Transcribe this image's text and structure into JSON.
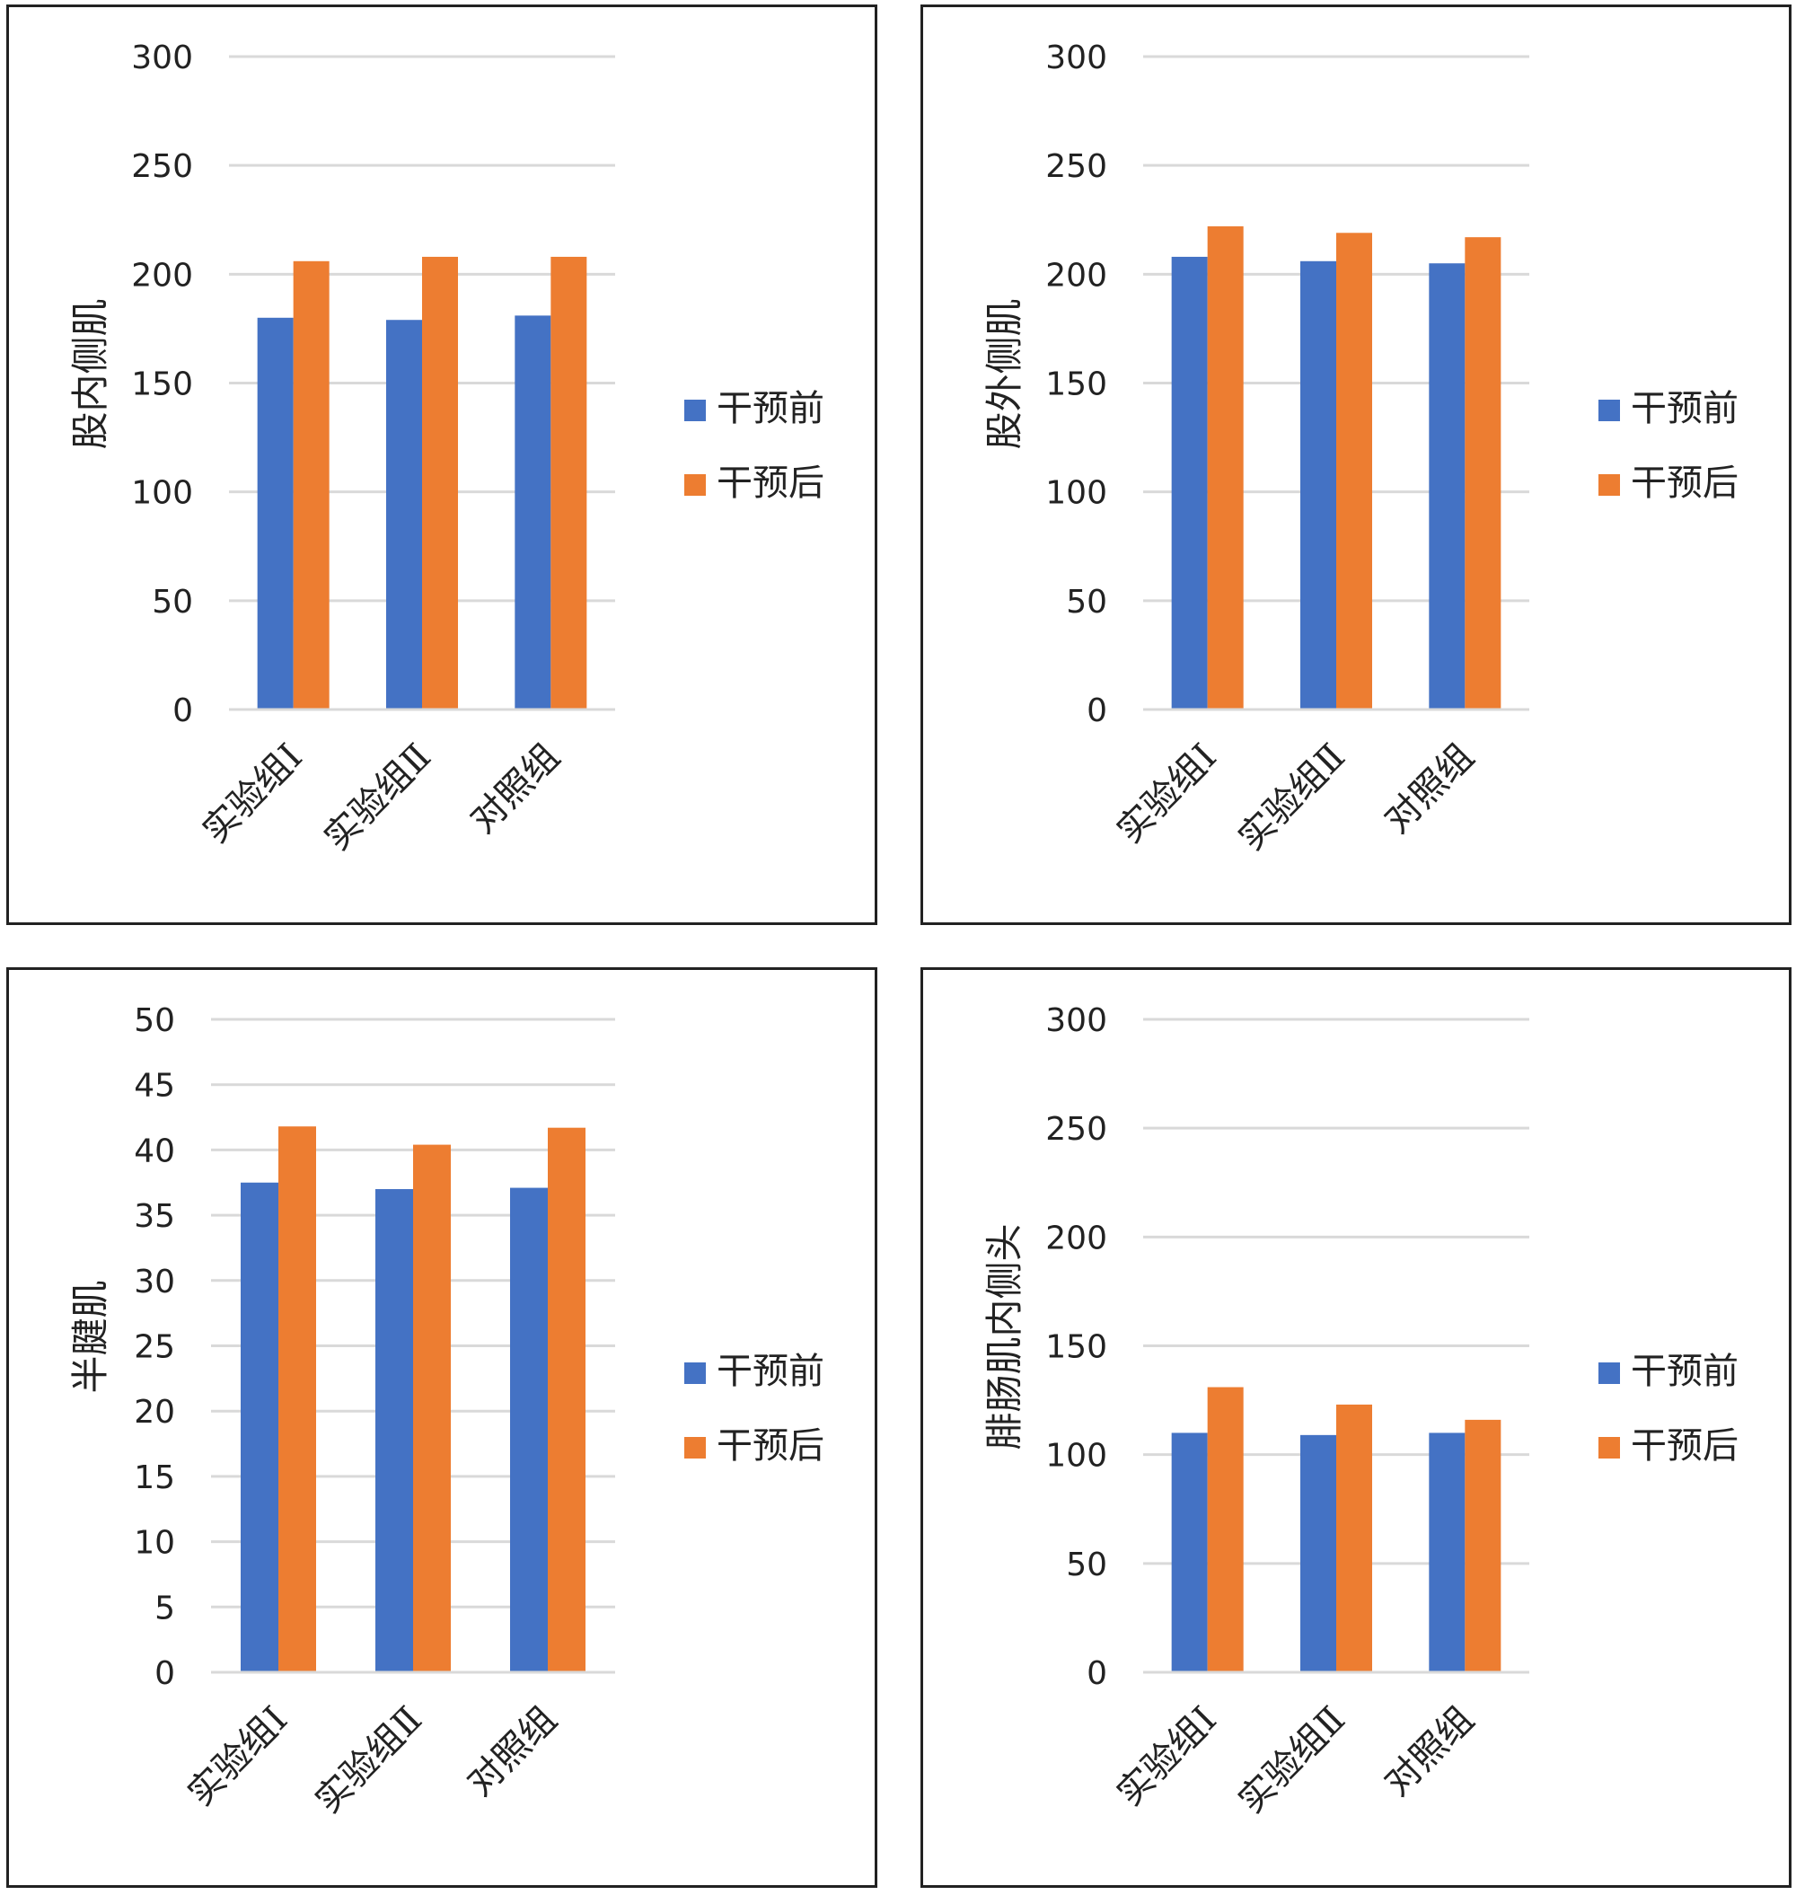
{
  "colors": {
    "before": "#4472C4",
    "after": "#ED7D31",
    "grid": "#d9d9d9",
    "axis": "#d9d9d9"
  },
  "legend": {
    "before": "干预前",
    "after": "干预后"
  },
  "chart_data": [
    {
      "type": "bar",
      "ylabel": "股内侧肌",
      "categories": [
        "实验组Ⅰ",
        "实验组Ⅱ",
        "对照组"
      ],
      "ylim": [
        0,
        300
      ],
      "yticks": [
        0,
        50,
        100,
        150,
        200,
        250,
        300
      ],
      "series": [
        {
          "name": "干预前",
          "values": [
            180,
            179,
            181
          ]
        },
        {
          "name": "干预后",
          "values": [
            206,
            208,
            208
          ]
        }
      ]
    },
    {
      "type": "bar",
      "ylabel": "股外侧肌",
      "categories": [
        "实验组Ⅰ",
        "实验组Ⅱ",
        "对照组"
      ],
      "ylim": [
        0,
        300
      ],
      "yticks": [
        0,
        50,
        100,
        150,
        200,
        250,
        300
      ],
      "series": [
        {
          "name": "干预前",
          "values": [
            208,
            206,
            205
          ]
        },
        {
          "name": "干预后",
          "values": [
            222,
            219,
            217
          ]
        }
      ]
    },
    {
      "type": "bar",
      "ylabel": "半腱肌",
      "categories": [
        "实验组Ⅰ",
        "实验组Ⅱ",
        "对照组"
      ],
      "ylim": [
        0,
        50
      ],
      "yticks": [
        0,
        5,
        10,
        15,
        20,
        25,
        30,
        35,
        40,
        45,
        50
      ],
      "series": [
        {
          "name": "干预前",
          "values": [
            37.5,
            37,
            37.1
          ]
        },
        {
          "name": "干预后",
          "values": [
            41.8,
            40.4,
            41.7
          ]
        }
      ]
    },
    {
      "type": "bar",
      "ylabel": "腓肠肌内侧头",
      "categories": [
        "实验组Ⅰ",
        "实验组Ⅱ",
        "对照组"
      ],
      "ylim": [
        0,
        300
      ],
      "yticks": [
        0,
        50,
        100,
        150,
        200,
        250,
        300
      ],
      "series": [
        {
          "name": "干预前",
          "values": [
            110,
            109,
            110
          ]
        },
        {
          "name": "干预后",
          "values": [
            131,
            123,
            116
          ]
        }
      ]
    }
  ]
}
